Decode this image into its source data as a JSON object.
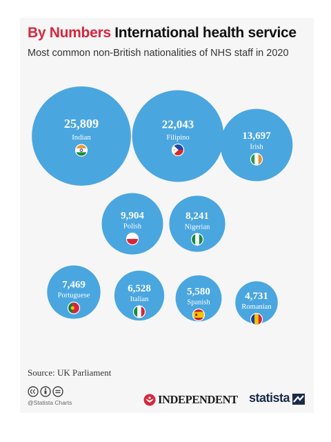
{
  "header": {
    "title_accent": "By Numbers",
    "title_main": "International health service",
    "subtitle": "Most common non-British nationalities of NHS staff in 2020"
  },
  "colors": {
    "bubble": "#4aa6df",
    "accent": "#d7263d",
    "text_on_bubble": "#ffffff"
  },
  "chart_data": {
    "type": "bubble",
    "title": "International health service",
    "subtitle": "Most common non-British nationalities of NHS staff in 2020",
    "series": [
      {
        "name": "Indian",
        "value": 25809,
        "label": "25,809",
        "flag": "india-flag-icon"
      },
      {
        "name": "Filipino",
        "value": 22043,
        "label": "22,043",
        "flag": "philippines-flag-icon"
      },
      {
        "name": "Irish",
        "value": 13697,
        "label": "13,697",
        "flag": "ireland-flag-icon"
      },
      {
        "name": "Polish",
        "value": 9904,
        "label": "9,904",
        "flag": "poland-flag-icon"
      },
      {
        "name": "Nigerian",
        "value": 8241,
        "label": "8,241",
        "flag": "nigeria-flag-icon"
      },
      {
        "name": "Portuguese",
        "value": 7469,
        "label": "7,469",
        "flag": "portugal-flag-icon"
      },
      {
        "name": "Italian",
        "value": 6528,
        "label": "6,528",
        "flag": "italy-flag-icon"
      },
      {
        "name": "Spanish",
        "value": 5580,
        "label": "5,580",
        "flag": "spain-flag-icon"
      },
      {
        "name": "Romanian",
        "value": 4731,
        "label": "4,731",
        "flag": "romania-flag-icon"
      }
    ]
  },
  "footer": {
    "source": "Source: UK Parliament",
    "credit": "@Statista Charts",
    "license_icons": [
      "cc-icon",
      "by-icon",
      "nd-icon"
    ],
    "publisher": "INDEPENDENT",
    "brand": "statista"
  }
}
